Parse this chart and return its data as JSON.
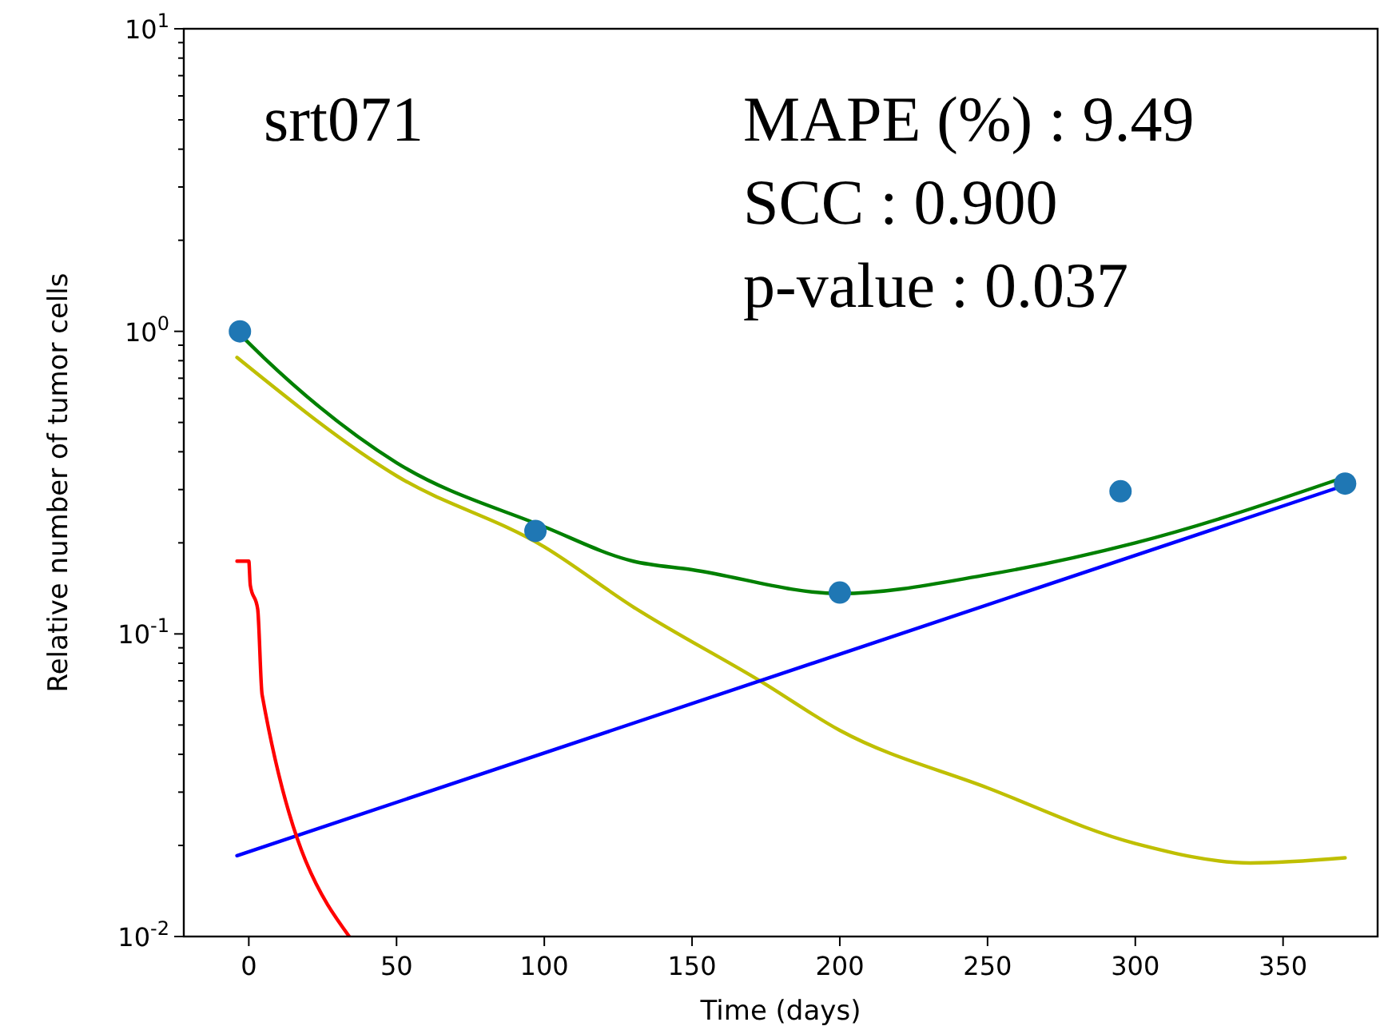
{
  "chart_data": {
    "type": "line",
    "xlabel": "Time (days)",
    "ylabel": "Relative number of tumor cells",
    "log": "y",
    "xlim": [
      -22,
      382
    ],
    "ylim": [
      0.01,
      10
    ],
    "xticks": [
      0,
      50,
      100,
      150,
      200,
      250,
      300,
      350
    ],
    "yticks": [
      {
        "value": 0.01,
        "label": "10$^{-2}$"
      },
      {
        "value": 0.02,
        "label": null
      },
      {
        "value": 0.03,
        "label": null
      },
      {
        "value": 0.04,
        "label": null
      },
      {
        "value": 0.05,
        "label": null
      },
      {
        "value": 0.06,
        "label": null
      },
      {
        "value": 0.07,
        "label": null
      },
      {
        "value": 0.08,
        "label": null
      },
      {
        "value": 0.09,
        "label": null
      },
      {
        "value": 0.1,
        "label": "10$^{-1}$"
      },
      {
        "value": 0.2,
        "label": null
      },
      {
        "value": 0.3,
        "label": null
      },
      {
        "value": 0.4,
        "label": null
      },
      {
        "value": 0.5,
        "label": null
      },
      {
        "value": 0.6,
        "label": null
      },
      {
        "value": 0.7,
        "label": null
      },
      {
        "value": 0.8,
        "label": null
      },
      {
        "value": 0.9,
        "label": null
      },
      {
        "value": 1,
        "label": "10$^{0}$"
      },
      {
        "value": 2,
        "label": null
      },
      {
        "value": 3,
        "label": null
      },
      {
        "value": 4,
        "label": null
      },
      {
        "value": 5,
        "label": null
      },
      {
        "value": 6,
        "label": null
      },
      {
        "value": 7,
        "label": null
      },
      {
        "value": 8,
        "label": null
      },
      {
        "value": 9,
        "label": null
      },
      {
        "value": 10,
        "label": "10$^{1}$"
      }
    ],
    "grid": false,
    "annotations": [
      "srt071",
      "MAPE (%) : 9.49",
      "SCC : 0.900",
      "p-value : 0.037"
    ],
    "series": [
      {
        "color": "#bfbf00",
        "x": [
          -4,
          50,
          100,
          130,
          174,
          200,
          250,
          300,
          339,
          371
        ],
        "values": [
          0.82,
          0.333,
          0.194,
          0.123,
          0.069,
          0.048,
          0.031,
          0.0203,
          0.0175,
          0.0182
        ]
      },
      {
        "color": "#0000ff",
        "x": [
          -4,
          371
        ],
        "values": [
          0.0185,
          0.31
        ]
      },
      {
        "color": "#ff0000",
        "x": [
          -4,
          0,
          0.5,
          3,
          4.5,
          34
        ],
        "values": [
          0.174,
          0.174,
          0.145,
          0.121,
          0.063,
          0.01
        ]
      },
      {
        "color": "#008000",
        "x": [
          -4,
          5,
          50,
          100,
          130,
          150,
          200,
          250,
          300,
          371
        ],
        "values": [
          1.0,
          0.82,
          0.368,
          0.226,
          0.174,
          0.163,
          0.136,
          0.157,
          0.2,
          0.33
        ]
      },
      {
        "type": "scatter",
        "color": "#1f77b4",
        "marker": "circle",
        "x": [
          -3,
          97,
          200,
          295,
          371
        ],
        "values": [
          1.0,
          0.219,
          0.137,
          0.296,
          0.314
        ]
      }
    ]
  }
}
